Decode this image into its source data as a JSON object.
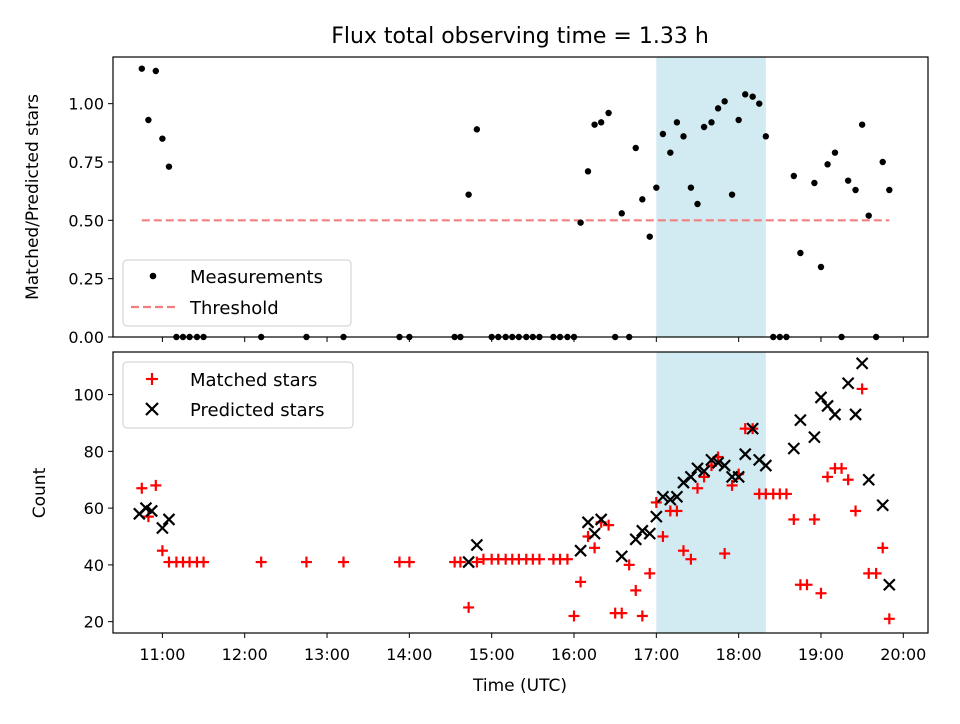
{
  "chart_data": {
    "type": "scatter",
    "title": "Flux total observing time = 1.33 h",
    "xlabel": "Time (UTC)",
    "x_ticks": [
      "11:00",
      "12:00",
      "13:00",
      "14:00",
      "15:00",
      "16:00",
      "17:00",
      "18:00",
      "19:00",
      "20:00"
    ],
    "x_range_hours": [
      10.4,
      20.3
    ],
    "highlight_span_hours": [
      17.0,
      18.33
    ],
    "colors": {
      "highlight": "#add8e6",
      "matched": "#ff0000",
      "predicted": "#000000",
      "threshold": "#f08080"
    },
    "panels": [
      {
        "ylabel": "Matched/Predicted stars",
        "ylim": [
          0,
          1.2
        ],
        "y_ticks": [
          "0.00",
          "0.25",
          "0.50",
          "0.75",
          "1.00"
        ],
        "legend_position": "lower-left",
        "series": [
          {
            "name": "Measurements",
            "marker": "dot",
            "x": [
              10.75,
              10.83,
              10.92,
              11.0,
              11.08,
              11.17,
              11.25,
              11.33,
              11.42,
              11.5,
              12.2,
              12.75,
              13.2,
              13.88,
              14.0,
              14.55,
              14.62,
              14.72,
              14.82,
              15.0,
              15.08,
              15.17,
              15.25,
              15.33,
              15.42,
              15.5,
              15.58,
              15.75,
              15.83,
              15.92,
              16.0,
              16.08,
              16.17,
              16.25,
              16.33,
              16.42,
              16.5,
              16.58,
              16.67,
              16.75,
              16.83,
              16.92,
              17.0,
              17.08,
              17.17,
              17.25,
              17.33,
              17.42,
              17.5,
              17.58,
              17.67,
              17.75,
              17.83,
              17.92,
              18.0,
              18.08,
              18.17,
              18.25,
              18.33,
              18.42,
              18.5,
              18.58,
              18.67,
              18.75,
              18.92,
              19.0,
              19.08,
              19.17,
              19.25,
              19.33,
              19.42,
              19.5,
              19.58,
              19.67,
              19.75,
              19.83
            ],
            "y": [
              1.15,
              0.93,
              1.14,
              0.85,
              0.73,
              0,
              0,
              0,
              0,
              0,
              0,
              0,
              0,
              0,
              0,
              0,
              0,
              0.61,
              0.89,
              0,
              0,
              0,
              0,
              0,
              0,
              0,
              0,
              0,
              0,
              0,
              0,
              0.49,
              0.71,
              0.91,
              0.92,
              0.96,
              0,
              0.53,
              0,
              0.81,
              0.59,
              0.43,
              0.64,
              0.87,
              0.79,
              0.92,
              0.86,
              0.64,
              0.57,
              0.9,
              0.92,
              0.98,
              1.01,
              0.61,
              0.93,
              1.04,
              1.03,
              1.0,
              0.86,
              0,
              0,
              0,
              0.69,
              0.36,
              0.66,
              0.3,
              0.74,
              0.79,
              0,
              0.67,
              0.63,
              0.91,
              0.52,
              0,
              0.75,
              0.63
            ]
          },
          {
            "name": "Threshold",
            "marker": "dashed-line",
            "x": [
              10.75,
              19.83
            ],
            "y": [
              0.5,
              0.5
            ]
          }
        ]
      },
      {
        "ylabel": "Count",
        "ylim": [
          16,
          115
        ],
        "y_ticks": [
          "20",
          "40",
          "60",
          "80",
          "100"
        ],
        "legend_position": "upper-left",
        "series": [
          {
            "name": "Matched stars",
            "marker": "plus",
            "x": [
              10.75,
              10.83,
              10.92,
              11.0,
              11.08,
              11.17,
              11.25,
              11.33,
              11.42,
              11.5,
              12.2,
              12.75,
              13.2,
              13.88,
              14.0,
              14.55,
              14.62,
              14.72,
              14.82,
              14.9,
              15.0,
              15.08,
              15.17,
              15.25,
              15.33,
              15.42,
              15.5,
              15.58,
              15.75,
              15.83,
              15.92,
              16.0,
              16.08,
              16.17,
              16.25,
              16.33,
              16.42,
              16.5,
              16.58,
              16.67,
              16.75,
              16.83,
              16.92,
              17.0,
              17.08,
              17.17,
              17.25,
              17.33,
              17.42,
              17.5,
              17.58,
              17.67,
              17.75,
              17.83,
              17.92,
              18.0,
              18.08,
              18.17,
              18.25,
              18.33,
              18.42,
              18.5,
              18.58,
              18.67,
              18.75,
              18.83,
              18.92,
              19.0,
              19.08,
              19.17,
              19.25,
              19.33,
              19.42,
              19.5,
              19.58,
              19.67,
              19.75,
              19.83
            ],
            "y": [
              67,
              57,
              68,
              45,
              41,
              41,
              41,
              41,
              41,
              41,
              41,
              41,
              41,
              41,
              41,
              41,
              41,
              25,
              41,
              42,
              42,
              42,
              42,
              42,
              42,
              42,
              42,
              42,
              42,
              42,
              42,
              22,
              34,
              50,
              46,
              55,
              54,
              23,
              23,
              40,
              31,
              22,
              37,
              62,
              50,
              59,
              59,
              45,
              42,
              67,
              71,
              75,
              78,
              44,
              68,
              72,
              88,
              88,
              65,
              65,
              65,
              65,
              65,
              56,
              33,
              33,
              56,
              30,
              71,
              74,
              74,
              70,
              59,
              102,
              37,
              37,
              46,
              21
            ]
          },
          {
            "name": "Predicted stars",
            "marker": "x",
            "x": [
              10.72,
              10.8,
              10.87,
              11.0,
              11.08,
              14.72,
              14.82,
              16.08,
              16.17,
              16.25,
              16.33,
              16.58,
              16.75,
              16.83,
              16.92,
              17.0,
              17.08,
              17.17,
              17.25,
              17.33,
              17.42,
              17.5,
              17.58,
              17.67,
              17.75,
              17.83,
              17.92,
              18.0,
              18.08,
              18.17,
              18.25,
              18.33,
              18.67,
              18.75,
              18.92,
              19.0,
              19.08,
              19.17,
              19.33,
              19.42,
              19.5,
              19.58,
              19.75,
              19.83
            ],
            "y": [
              58,
              60,
              59,
              53,
              56,
              41,
              47,
              45,
              55,
              51,
              56,
              43,
              49,
              52,
              51,
              57,
              64,
              63,
              64,
              69,
              71,
              74,
              73,
              77,
              76,
              75,
              71,
              71,
              79,
              88,
              77,
              75,
              81,
              91,
              85,
              99,
              96,
              93,
              104,
              93,
              111,
              70,
              61,
              33
            ]
          }
        ]
      }
    ]
  }
}
